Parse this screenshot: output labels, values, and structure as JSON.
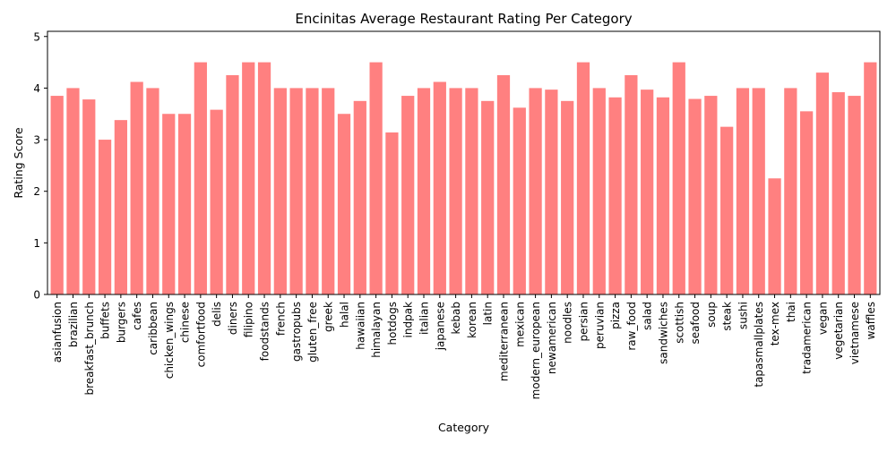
{
  "chart_data": {
    "type": "bar",
    "title": "Encinitas Average Restaurant Rating Per Category",
    "xlabel": "Category",
    "ylabel": "Rating Score",
    "ylim": [
      0,
      5.1
    ],
    "yticks": [
      0,
      1,
      2,
      3,
      4,
      5
    ],
    "grid": false,
    "bar_color": "#ff8080",
    "categories": [
      "asianfusion",
      "brazilian",
      "breakfast_brunch",
      "buffets",
      "burgers",
      "cafes",
      "caribbean",
      "chicken_wings",
      "chinese",
      "comfortfood",
      "delis",
      "diners",
      "filipino",
      "foodstands",
      "french",
      "gastropubs",
      "gluten_free",
      "greek",
      "halal",
      "hawaiian",
      "himalayan",
      "hotdogs",
      "indpak",
      "italian",
      "japanese",
      "kebab",
      "korean",
      "latin",
      "mediterranean",
      "mexican",
      "modern_european",
      "newamerican",
      "noodles",
      "persian",
      "peruvian",
      "pizza",
      "raw_food",
      "salad",
      "sandwiches",
      "scottish",
      "seafood",
      "soup",
      "steak",
      "sushi",
      "tapasmallplates",
      "tex-mex",
      "thai",
      "tradamerican",
      "vegan",
      "vegetarian",
      "vietnamese",
      "waffles"
    ],
    "values": [
      3.85,
      4.0,
      3.78,
      3.0,
      3.38,
      4.12,
      4.0,
      3.5,
      3.5,
      4.5,
      3.58,
      4.25,
      4.5,
      4.5,
      4.0,
      4.0,
      4.0,
      4.0,
      3.5,
      3.75,
      4.5,
      3.14,
      3.85,
      4.0,
      4.12,
      4.0,
      4.0,
      3.75,
      4.25,
      3.62,
      4.0,
      3.97,
      3.75,
      4.5,
      4.0,
      3.82,
      4.25,
      3.97,
      3.82,
      4.5,
      3.79,
      3.85,
      3.25,
      4.0,
      4.0,
      2.25,
      4.0,
      3.55,
      4.3,
      3.92,
      3.85,
      4.5
    ]
  }
}
